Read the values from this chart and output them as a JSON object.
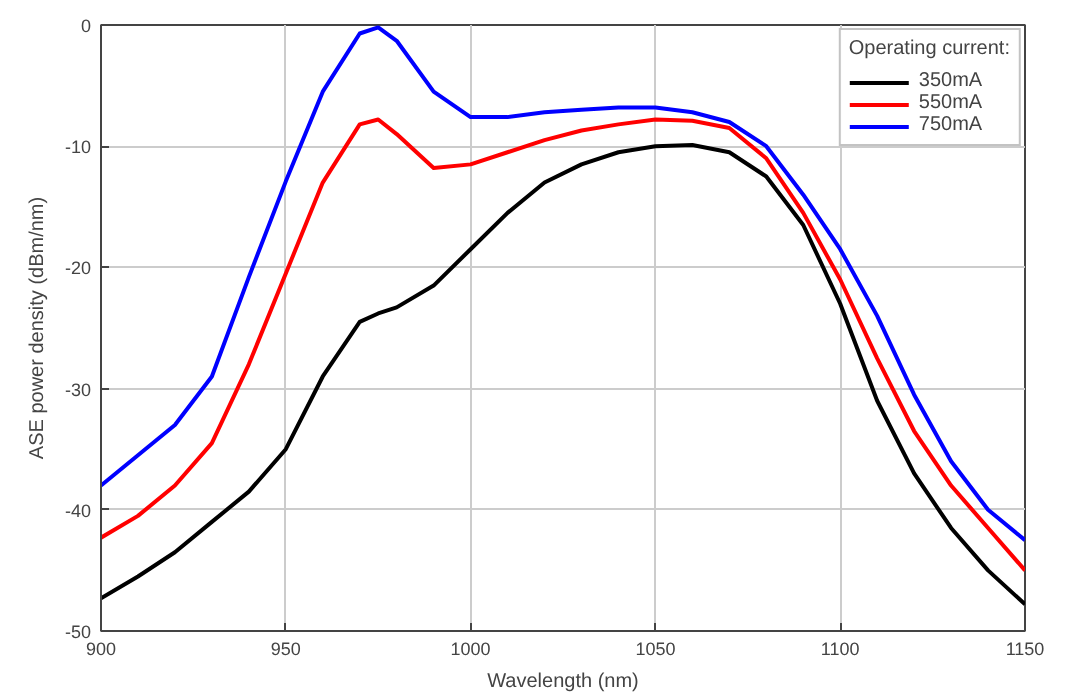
{
  "chart_data": {
    "type": "line",
    "xlabel": "Wavelength (nm)",
    "ylabel": "ASE power density (dBm/nm)",
    "legend_title": "Operating current:",
    "x": [
      900,
      910,
      920,
      930,
      940,
      950,
      960,
      970,
      975,
      980,
      990,
      1000,
      1010,
      1020,
      1030,
      1040,
      1050,
      1060,
      1070,
      1080,
      1090,
      1100,
      1110,
      1120,
      1130,
      1140,
      1150
    ],
    "series": [
      {
        "name": "350mA",
        "color": "#000000",
        "values": [
          -47.3,
          -45.5,
          -43.5,
          -41,
          -38.5,
          -35,
          -29,
          -24.5,
          -23.8,
          -23.3,
          -21.5,
          -18.5,
          -15.5,
          -13,
          -11.5,
          -10.5,
          -10,
          -9.9,
          -10.5,
          -12.5,
          -16.5,
          -23,
          -31,
          -37,
          -41.5,
          -45,
          -47.8
        ]
      },
      {
        "name": "550mA",
        "color": "#ff0000",
        "values": [
          -42.3,
          -40.5,
          -38,
          -34.5,
          -28,
          -20.5,
          -13,
          -8.2,
          -7.8,
          -9,
          -11.8,
          -11.5,
          -10.5,
          -9.5,
          -8.7,
          -8.2,
          -7.8,
          -7.9,
          -8.5,
          -11,
          -15.5,
          -21,
          -27.5,
          -33.5,
          -38,
          -41.5,
          -45
        ]
      },
      {
        "name": "750mA",
        "color": "#0000ff",
        "values": [
          -38,
          -35.5,
          -33,
          -29,
          -20.8,
          -12.9,
          -5.5,
          -0.7,
          -0.2,
          -1.3,
          -5.5,
          -7.6,
          -7.6,
          -7.2,
          -7,
          -6.8,
          -6.8,
          -7.2,
          -8,
          -10,
          -14,
          -18.5,
          -24,
          -30.5,
          -36,
          -40,
          -42.5
        ]
      }
    ],
    "xlim": [
      900,
      1150
    ],
    "ylim": [
      -50,
      0
    ],
    "xticks": [
      900,
      950,
      1000,
      1050,
      1100,
      1150
    ],
    "yticks": [
      -50,
      -40,
      -30,
      -20,
      -10,
      0
    ],
    "grid": true,
    "legend": "top right",
    "line_style": "solid"
  }
}
